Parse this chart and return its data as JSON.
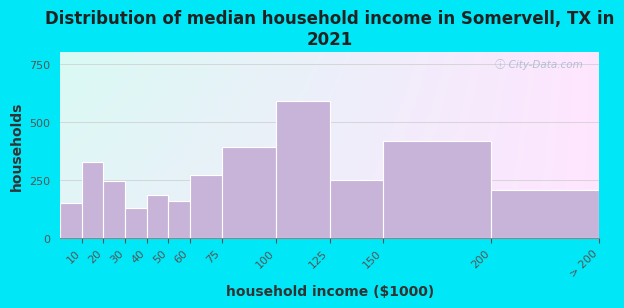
{
  "title": "Distribution of median household income in Somervell, TX in\n2021",
  "xlabel": "household income ($1000)",
  "ylabel": "households",
  "edges": [
    0,
    10,
    20,
    30,
    40,
    50,
    60,
    75,
    100,
    125,
    150,
    200,
    250
  ],
  "tick_labels": [
    "10",
    "20",
    "30",
    "40",
    "50",
    "60",
    "75",
    "100",
    "125",
    "150",
    "200",
    "> 200"
  ],
  "tick_positions": [
    10,
    20,
    30,
    40,
    50,
    60,
    75,
    100,
    125,
    150,
    200,
    250
  ],
  "values": [
    150,
    325,
    245,
    130,
    185,
    160,
    270,
    390,
    590,
    248,
    415,
    205
  ],
  "bar_color": "#c8b4d8",
  "bar_edge_color": "#ffffff",
  "bg_outer": "#00e8f8",
  "ylim": [
    0,
    800
  ],
  "yticks": [
    0,
    250,
    500,
    750
  ],
  "title_fontsize": 12,
  "axis_label_fontsize": 10,
  "tick_fontsize": 8,
  "watermark": "ⓘ City-Data.com"
}
